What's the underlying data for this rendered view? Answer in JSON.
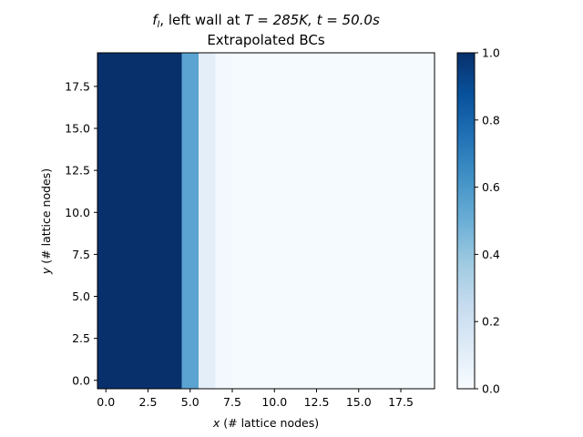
{
  "chart_data": {
    "type": "heatmap",
    "title_line1_var": "f",
    "title_line1_sub": "l",
    "title_line1_mid": ", left wall at ",
    "title_line1_T": "T = 285K, t = 50.0s",
    "title_line2": "Extrapolated BCs",
    "xlabel_var": "x",
    "xlabel_rest": " (# lattice nodes)",
    "ylabel_var": "y",
    "ylabel_rest": " (# lattice nodes)",
    "x_ticks": [
      0.0,
      2.5,
      5.0,
      7.5,
      10.0,
      12.5,
      15.0,
      17.5
    ],
    "y_ticks": [
      0.0,
      2.5,
      5.0,
      7.5,
      10.0,
      12.5,
      15.0,
      17.5
    ],
    "x_tick_labels": [
      "0.0",
      "2.5",
      "5.0",
      "7.5",
      "10.0",
      "12.5",
      "15.0",
      "17.5"
    ],
    "y_tick_labels": [
      "0.0",
      "2.5",
      "5.0",
      "7.5",
      "10.0",
      "12.5",
      "15.0",
      "17.5"
    ],
    "xlim": [
      -0.5,
      19.5
    ],
    "ylim": [
      -0.5,
      19.5
    ],
    "grid": false,
    "colormap": "Blues",
    "vmin": 0.0,
    "vmax": 1.0,
    "colorbar_ticks": [
      0.0,
      0.2,
      0.4,
      0.6,
      0.8,
      1.0
    ],
    "colorbar_tick_labels": [
      "0.0",
      "0.2",
      "0.4",
      "0.6",
      "0.8",
      "1.0"
    ],
    "column_values": [
      1.0,
      1.0,
      1.0,
      1.0,
      1.0,
      0.55,
      0.1,
      0.02,
      0.01,
      0.01,
      0.01,
      0.01,
      0.01,
      0.01,
      0.01,
      0.01,
      0.01,
      0.01,
      0.01,
      0.01
    ],
    "note_rows": "All 20 rows (y = 0..19) share the same column profile."
  }
}
